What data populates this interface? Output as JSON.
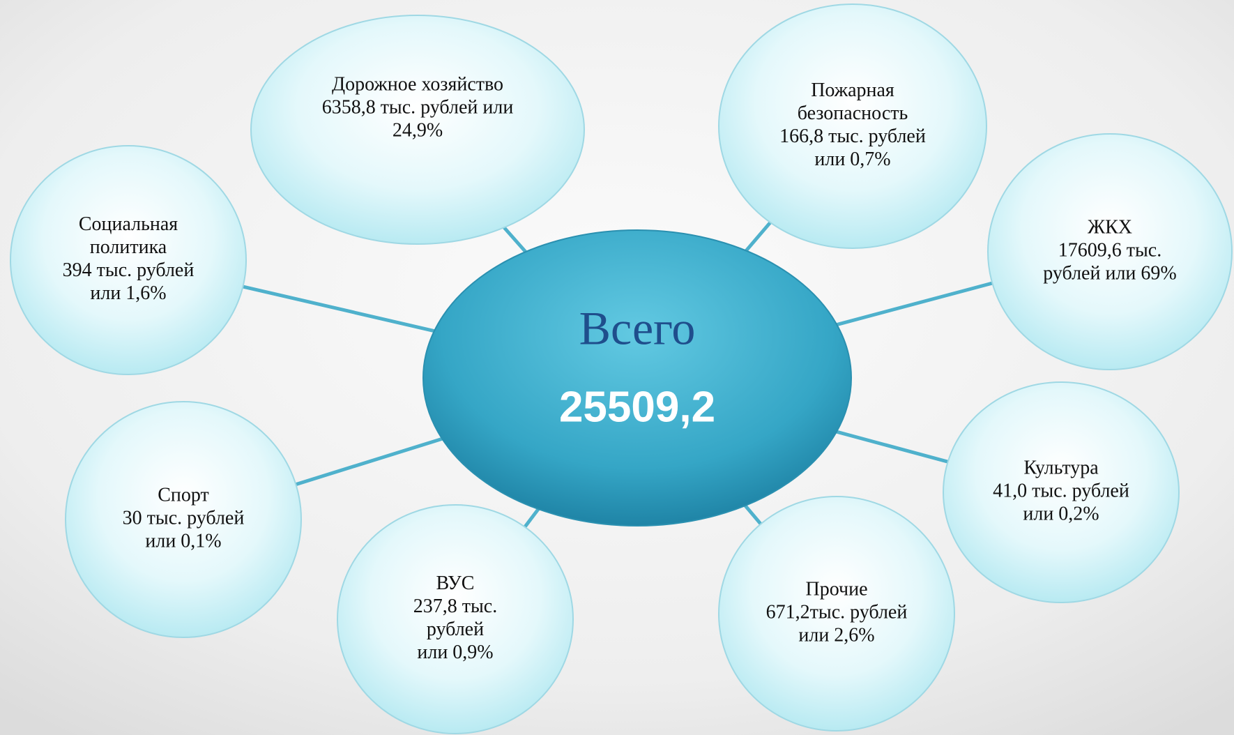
{
  "center": {
    "title": "Всего",
    "value": "25509,2"
  },
  "nodes": [
    {
      "lines": [
        "Дорожное хозяйство",
        "6358,8 тыс. рублей или",
        "24,9%"
      ]
    },
    {
      "lines": [
        "Пожарная",
        "безопасность",
        "166,8 тыс. рублей",
        "или 0,7%"
      ]
    },
    {
      "lines": [
        "ЖКХ",
        "17609,6 тыс.",
        "рублей  или 69%"
      ]
    },
    {
      "lines": [
        "Культура",
        "41,0 тыс. рублей",
        "или 0,2%"
      ]
    },
    {
      "lines": [
        "Прочие",
        "671,2тыс. рублей",
        "или 2,6%"
      ]
    },
    {
      "lines": [
        "ВУС",
        "237,8 тыс.",
        "рублей",
        "или 0,9%"
      ]
    },
    {
      "lines": [
        "Спорт",
        "30 тыс. рублей",
        "или 0,1%"
      ]
    },
    {
      "lines": [
        "Социальная",
        "политика",
        "394 тыс. рублей",
        "или 1,6%"
      ]
    }
  ]
}
